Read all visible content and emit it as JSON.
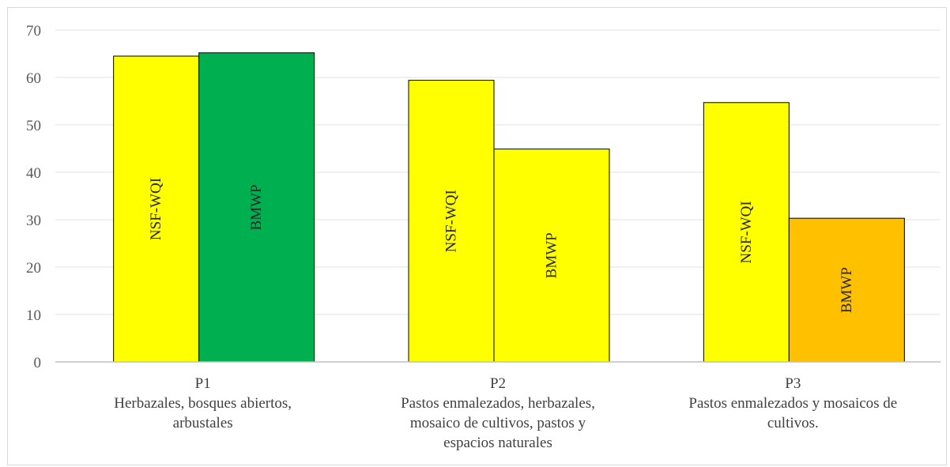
{
  "chart_data": {
    "type": "bar",
    "categories": [
      [
        "P1",
        "Herbazales, bosques abiertos,",
        "arbustales"
      ],
      [
        "P2",
        "Pastos enmalezados, herbazales,",
        "mosaico de cultivos, pastos y",
        "espacios naturales"
      ],
      [
        "P3",
        "Pastos enmalezados y mosaicos de",
        "cultivos."
      ]
    ],
    "series": [
      {
        "name": "NSF-WQI",
        "values": [
          64.5,
          59.4,
          54.7
        ],
        "colors": [
          "#ffff00",
          "#ffff00",
          "#ffff00"
        ]
      },
      {
        "name": "BMWP",
        "values": [
          65.2,
          44.9,
          30.3
        ],
        "colors": [
          "#00b050",
          "#ffff00",
          "#ffc000"
        ]
      }
    ],
    "ylim": [
      0,
      70
    ],
    "yticks": [
      0,
      10,
      20,
      30,
      40,
      50,
      60,
      70
    ],
    "grid": true,
    "title": "",
    "xlabel": "",
    "ylabel": ""
  }
}
